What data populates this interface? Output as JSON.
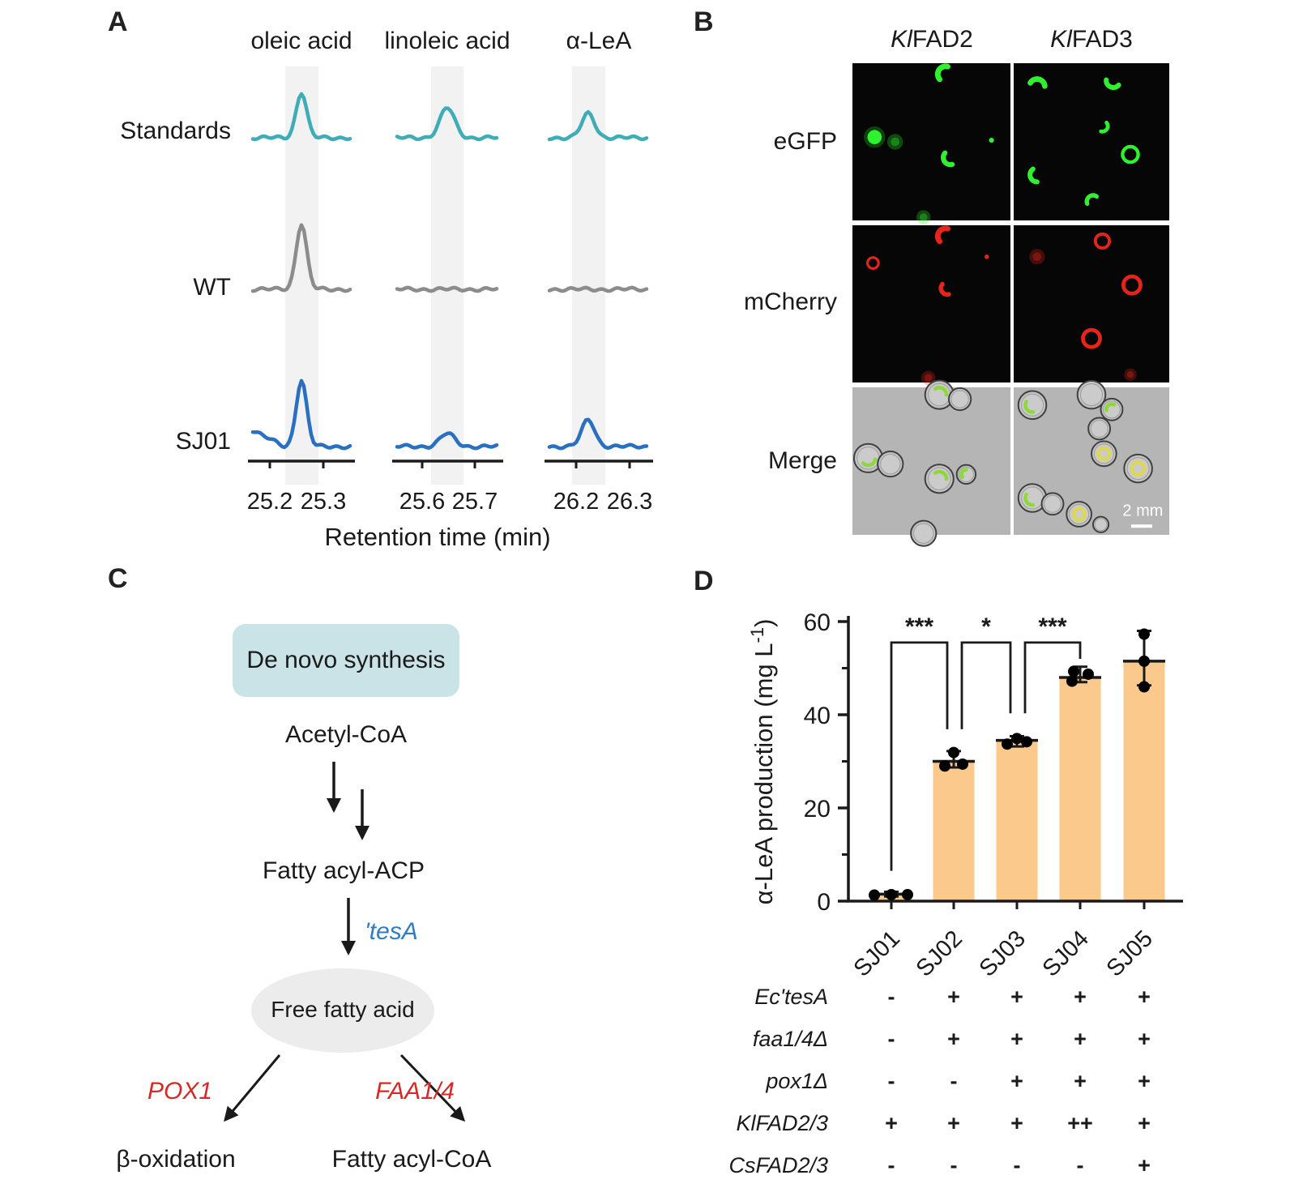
{
  "panels": {
    "a": "A",
    "b": "B",
    "c": "C",
    "d": "D"
  },
  "panel_a": {
    "columns": [
      {
        "title": "oleic acid",
        "ticks": [
          "25.2",
          "25.3"
        ]
      },
      {
        "title": "linoleic acid",
        "ticks": [
          "25.6",
          "25.7"
        ]
      },
      {
        "title": "α-LeA",
        "ticks": [
          "26.2",
          "26.3"
        ]
      }
    ],
    "rows": [
      {
        "label": "Standards",
        "color": "#3fadb8"
      },
      {
        "label": "WT",
        "color": "#8c8c8c"
      },
      {
        "label": "SJ01",
        "color": "#2a70c0"
      }
    ],
    "peak_heights": [
      [
        56,
        37,
        30
      ],
      [
        81,
        0,
        0
      ],
      [
        82,
        16,
        33
      ]
    ],
    "lead_in_offsets": [
      [
        0,
        0,
        0
      ],
      [
        0,
        0,
        0
      ],
      [
        20,
        0,
        0
      ]
    ],
    "xlabel": "Retention time (min)",
    "band_color": "#f2f2f2"
  },
  "panel_b": {
    "col_titles": [
      {
        "italic": "Kl",
        "plain": "FAD2"
      },
      {
        "italic": "Kl",
        "plain": "FAD3"
      }
    ],
    "row_labels": [
      "eGFP",
      "mCherry",
      "Merge"
    ],
    "scale_bar_label": "2 mm",
    "colors": {
      "gfp": "#2df22d",
      "mcherry": "#e62419",
      "merge_bg": "#b5b5b5",
      "fluor_bg": "#060606"
    },
    "micrographs": {
      "egfp_fad2": [
        [
          "arc",
          59,
          7,
          5,
          140
        ],
        [
          "blob",
          14,
          47,
          4.5,
          0
        ],
        [
          "dim",
          27,
          50,
          5,
          0
        ],
        [
          "arc",
          62,
          60,
          4.5,
          75
        ],
        [
          "dot",
          88,
          49,
          1.6,
          0
        ],
        [
          "dim",
          45,
          98,
          4.5,
          0
        ]
      ],
      "egfp_fad3": [
        [
          "arc",
          15,
          15,
          5,
          210
        ],
        [
          "arc",
          64,
          11,
          4.5,
          40
        ],
        [
          "arc",
          57,
          40,
          3.5,
          320
        ],
        [
          "ring",
          75,
          58,
          5,
          0
        ],
        [
          "arc",
          15,
          71,
          4.5,
          90
        ],
        [
          "arc",
          51,
          88,
          4,
          160
        ]
      ],
      "mcherry_fad2": [
        [
          "arc",
          59,
          7,
          5,
          140
        ],
        [
          "ring",
          13,
          24,
          3.5,
          0
        ],
        [
          "arc",
          60,
          40,
          4,
          75
        ],
        [
          "dot",
          85,
          20,
          1.4,
          0
        ],
        [
          "dim",
          48,
          97,
          4.5,
          0
        ]
      ],
      "mcherry_fad3": [
        [
          "ring",
          57,
          10,
          4.5,
          0
        ],
        [
          "ring",
          76,
          38,
          5.5,
          0
        ],
        [
          "ring",
          50,
          72,
          5.5,
          0
        ],
        [
          "dim",
          15,
          20,
          5,
          0
        ],
        [
          "dim",
          75,
          95,
          4,
          0
        ]
      ],
      "merge_fad2": [
        [
          55,
          5,
          9,
          "g"
        ],
        [
          68,
          8,
          7,
          ""
        ],
        [
          10,
          48,
          9,
          "g"
        ],
        [
          24,
          52,
          8,
          ""
        ],
        [
          55,
          62,
          9,
          "g"
        ],
        [
          72,
          59,
          6,
          "g"
        ],
        [
          45,
          99,
          8,
          ""
        ]
      ],
      "merge_fad3": [
        [
          12,
          12,
          9,
          "g"
        ],
        [
          50,
          5,
          9,
          ""
        ],
        [
          63,
          15,
          7,
          "g"
        ],
        [
          55,
          28,
          7,
          ""
        ],
        [
          58,
          45,
          8,
          "y"
        ],
        [
          80,
          55,
          9,
          "y"
        ],
        [
          12,
          75,
          9,
          "g"
        ],
        [
          25,
          79,
          7,
          ""
        ],
        [
          42,
          86,
          8,
          "y"
        ],
        [
          56,
          93,
          5,
          ""
        ]
      ]
    }
  },
  "panel_c": {
    "box_label": "De novo synthesis",
    "node_acetyl": "Acetyl-CoA",
    "node_acp": "Fatty acyl-ACP",
    "enzyme_tesa": "'tesA",
    "node_ffa": "Free fatty acid",
    "enzyme_pox1": "POX1",
    "enzyme_faa": "FAA1/4",
    "node_betaox": "β-oxidation",
    "node_facoa": "Fatty acyl-CoA",
    "colors": {
      "box_bg": "#c9e3e6",
      "ellipse_bg": "#ececec",
      "enzyme_blue": "#2e7bc8",
      "enzyme_red": "#d42a28",
      "arrow": "#1a1a1a"
    }
  },
  "chart_data": {
    "type": "bar",
    "categories": [
      "SJ01",
      "SJ02",
      "SJ03",
      "SJ04",
      "SJ05"
    ],
    "values": [
      1.5,
      30,
      34.5,
      48,
      51.5
    ],
    "error_low": [
      1.0,
      28.7,
      33.2,
      47.0,
      46.3
    ],
    "error_high": [
      2.0,
      32.2,
      35.4,
      50.3,
      58.0
    ],
    "points": [
      [
        1.3,
        1.4,
        1.4
      ],
      [
        29.0,
        29.4,
        31.9
      ],
      [
        33.7,
        34.9,
        34.2
      ],
      [
        47.2,
        49.3,
        48.7
      ],
      [
        46.0,
        51.5,
        57.3
      ]
    ],
    "ylabel": "α-LeA production (mg L-1)",
    "ylabel_main": "α-LeA production (mg L",
    "ylabel_sup": "-1",
    "ylabel_close": ")",
    "ylim": [
      0,
      60
    ],
    "yticks": [
      0,
      20,
      40,
      60
    ],
    "yticks_minor": [
      10,
      30,
      50
    ],
    "bar_color": "#fbc98c",
    "grid": false,
    "legend": "none",
    "significance": [
      {
        "from": 0,
        "to": 1,
        "label": "***",
        "top": 55.5,
        "drop_from": 6.5,
        "drop_to": 36.9
      },
      {
        "from": 1,
        "to": 2,
        "label": "*",
        "top": 55.5,
        "drop_from": 36.9,
        "drop_to": 40.3
      },
      {
        "from": 2,
        "to": 3,
        "label": "***",
        "top": 55.5,
        "drop_from": 40.3,
        "drop_to": 52.0
      }
    ]
  },
  "genotype_table": {
    "rows": [
      {
        "label": "Ec'tesA",
        "values": [
          "-",
          "+",
          "+",
          "+",
          "+"
        ]
      },
      {
        "label": "faa1/4Δ",
        "values": [
          "-",
          "+",
          "+",
          "+",
          "+"
        ]
      },
      {
        "label": "pox1Δ",
        "values": [
          "-",
          "-",
          "+",
          "+",
          "+"
        ]
      },
      {
        "label": "KlFAD2/3",
        "values": [
          "+",
          "+",
          "+",
          "++",
          "+"
        ]
      },
      {
        "label": "CsFAD2/3",
        "values": [
          "-",
          "-",
          "-",
          "-",
          "+"
        ]
      }
    ]
  }
}
